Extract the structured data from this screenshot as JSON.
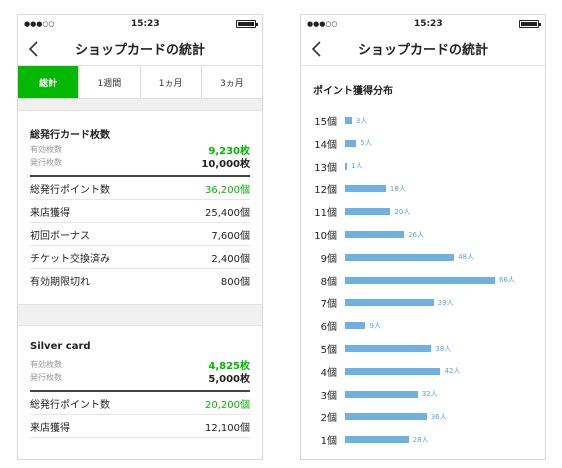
{
  "status": {
    "time": "15:23",
    "signal": "●●●○○"
  },
  "screen1": {
    "title": "ショップカードの統計",
    "tabs": [
      "総計",
      "1週間",
      "1ヵ月",
      "3ヵ月"
    ],
    "sections": [
      {
        "title": "総発行カード枚数",
        "valid_label": "有効枚数",
        "valid_value": "9,230枚",
        "issued_label": "発行枚数",
        "issued_value": "10,000枚",
        "rows": [
          {
            "label": "総発行ポイント数",
            "value": "36,200個"
          },
          {
            "label": "来店獲得",
            "value": "25,400個"
          },
          {
            "label": "初回ボーナス",
            "value": "7,600個"
          },
          {
            "label": "チケット交換済み",
            "value": "2,400個"
          },
          {
            "label": "有効期限切れ",
            "value": "800個"
          }
        ]
      },
      {
        "title": "Silver card",
        "valid_label": "有効枚数",
        "valid_value": "4,825枚",
        "issued_label": "発行枚数",
        "issued_value": "5,000枚",
        "rows": [
          {
            "label": "総発行ポイント数",
            "value": "20,200個"
          },
          {
            "label": "来店獲得",
            "value": "12,100個"
          }
        ]
      }
    ]
  },
  "screen2": {
    "title": "ショップカードの統計",
    "section_title": "ポイント獲得分布",
    "chart_data": {
      "type": "bar",
      "categories": [
        "15個",
        "14個",
        "13個",
        "12個",
        "11個",
        "10個",
        "9個",
        "8個",
        "7個",
        "6個",
        "5個",
        "4個",
        "3個",
        "2個",
        "1個"
      ],
      "values": [
        3,
        5,
        1,
        18,
        20,
        26,
        48,
        66,
        39,
        9,
        38,
        42,
        32,
        36,
        28
      ],
      "data_labels": [
        "3人",
        "5人",
        "1人",
        "18人",
        "20人",
        "26人",
        "48人",
        "66人",
        "39人",
        "9人",
        "38人",
        "42人",
        "32人",
        "36人",
        "28人"
      ],
      "max": 66
    }
  },
  "colors": {
    "accent": "#00b900",
    "bar": "#6fb1e2"
  }
}
